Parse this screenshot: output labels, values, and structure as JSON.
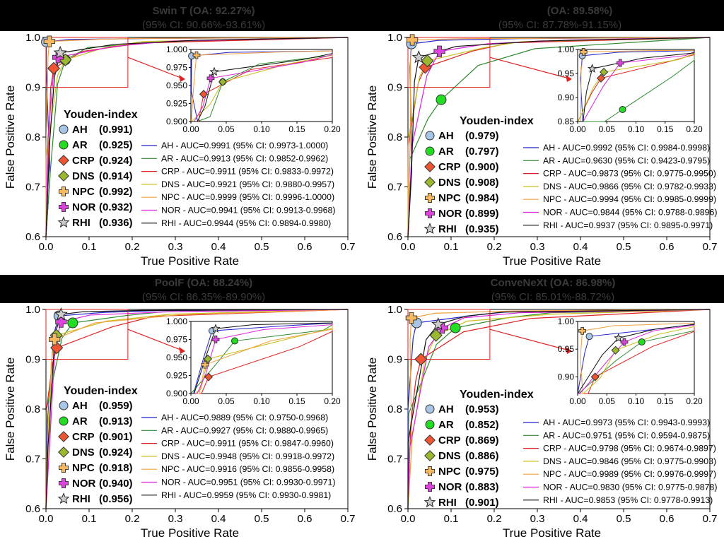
{
  "panels": [
    {
      "title": "Swin T (OA: 92.27%)",
      "ci": "(95% CI: 90.66%-93.61%)",
      "youden_title": "Youden-index",
      "xlabel": "True Positive Rate",
      "ylabel": "False Positive Rate",
      "xlim": [
        0,
        0.7
      ],
      "ylim": [
        0.6,
        1.0
      ],
      "inset_xlim": [
        0,
        0.2
      ],
      "inset_ylim": [
        0.9,
        1.0
      ],
      "inset_yticks": [
        "0.900",
        "0.925",
        "0.950",
        "0.975",
        "1.000"
      ],
      "series": [
        {
          "name": "AH",
          "youden": "(0.991)",
          "legend": "AH - AUC=0.9991 (95% CI: 0.9973-1.0000)",
          "color": "#2222cc",
          "marker": "circle",
          "mcolor": "#a8c4e6",
          "pt": [
            0.001,
            0.991
          ]
        },
        {
          "name": "AR",
          "youden": "(0.925)",
          "legend": "AR - AUC=0.9913 (95% CI: 0.9852-0.9962)",
          "color": "#2e8b2e",
          "marker": "circle",
          "mcolor": "#22dd22",
          "pt": [
            0.045,
            0.955
          ]
        },
        {
          "name": "CRP",
          "youden": "(0.924)",
          "legend": "CRP - AUC=0.9911 (95% CI: 0.9833-0.9972)",
          "color": "#dd2222",
          "marker": "diamond",
          "mcolor": "#ee5533",
          "pt": [
            0.018,
            0.938
          ]
        },
        {
          "name": "DNS",
          "youden": "(0.914)",
          "legend": "DNS - AUC=0.9921 (95% CI: 0.9880-0.9957)",
          "color": "#c8c020",
          "marker": "diamond",
          "mcolor": "#9ab830",
          "pt": [
            0.045,
            0.955
          ]
        },
        {
          "name": "NPC",
          "youden": "(0.992)",
          "legend": "NPC - AUC=0.9999 (95% CI: 0.9996-1.0000)",
          "color": "#f0a040",
          "marker": "plus",
          "mcolor": "#f6b860",
          "pt": [
            0.008,
            0.992
          ]
        },
        {
          "name": "NOR",
          "youden": "(0.932)",
          "legend": "NOR - AUC=0.9941 (95% CI: 0.9913-0.9968)",
          "color": "#dd22dd",
          "marker": "plus",
          "mcolor": "#dd44dd",
          "pt": [
            0.028,
            0.96
          ]
        },
        {
          "name": "RHI",
          "youden": "(0.936)",
          "legend": "RHI - AUC=0.9944 (95% CI: 0.9894-0.9980)",
          "color": "#111111",
          "marker": "star",
          "mcolor": "#cccccc",
          "pt": [
            0.033,
            0.969
          ]
        }
      ]
    },
    {
      "title": "(OA: 89.58%)",
      "ci": "(95% CI: 87.78%-91.15%)",
      "youden_title": "Youden-index",
      "xlabel": "True Positive Rate",
      "ylabel": "False Positive Rate",
      "xlim": [
        0,
        0.7
      ],
      "ylim": [
        0.6,
        1.0
      ],
      "inset_xlim": [
        0,
        0.2
      ],
      "inset_ylim": [
        0.85,
        1.0
      ],
      "inset_yticks": [
        "0.85",
        "0.90",
        "0.95",
        "1.00"
      ],
      "series": [
        {
          "name": "AH",
          "youden": "(0.979)",
          "legend": "AH - AUC=0.9992 (95% CI: 0.9984-0.9998)",
          "color": "#2222cc",
          "marker": "circle",
          "mcolor": "#a8c4e6",
          "pt": [
            0.008,
            0.987
          ]
        },
        {
          "name": "AR",
          "youden": "(0.797)",
          "legend": "AR - AUC=0.9630 (95% CI: 0.9423-0.9795)",
          "color": "#2e8b2e",
          "marker": "circle",
          "mcolor": "#22dd22",
          "pt": [
            0.077,
            0.875
          ]
        },
        {
          "name": "CRP",
          "youden": "(0.900)",
          "legend": "CRP - AUC=0.9873 (95% CI: 0.9775-0.9950)",
          "color": "#dd2222",
          "marker": "diamond",
          "mcolor": "#ee5533",
          "pt": [
            0.04,
            0.94
          ]
        },
        {
          "name": "DNS",
          "youden": "(0.908)",
          "legend": "DNS - AUC=0.9866 (95% CI: 0.9782-0.9933)",
          "color": "#c8c020",
          "marker": "diamond",
          "mcolor": "#9ab830",
          "pt": [
            0.045,
            0.953
          ]
        },
        {
          "name": "NPC",
          "youden": "(0.984)",
          "legend": "NPC - AUC=0.9994 (95% CI: 0.9985-0.9999)",
          "color": "#f0a040",
          "marker": "plus",
          "mcolor": "#f6b860",
          "pt": [
            0.01,
            0.995
          ]
        },
        {
          "name": "NOR",
          "youden": "(0.899)",
          "legend": "NOR - AUC=0.9844 (95% CI: 0.9788-0.9896)",
          "color": "#dd22dd",
          "marker": "plus",
          "mcolor": "#dd44dd",
          "pt": [
            0.073,
            0.972
          ]
        },
        {
          "name": "RHI",
          "youden": "(0.935)",
          "legend": "RHI - AUC=0.9937 (95% CI: 0.9895-0.9971)",
          "color": "#111111",
          "marker": "star",
          "mcolor": "#cccccc",
          "pt": [
            0.025,
            0.96
          ]
        }
      ]
    },
    {
      "title": "PoolF (OA: 88.24%)",
      "ci": "(95% CI: 86.35%-89.90%)",
      "youden_title": "Youden-index",
      "xlabel": "True Positive Rate",
      "ylabel": "False Positive Rate",
      "xlim": [
        0,
        0.7
      ],
      "ylim": [
        0.6,
        1.0
      ],
      "inset_xlim": [
        0,
        0.2
      ],
      "inset_ylim": [
        0.9,
        1.0
      ],
      "inset_yticks": [
        "0.900",
        "0.925",
        "0.950",
        "0.975",
        "1.000"
      ],
      "series": [
        {
          "name": "AH",
          "youden": "(0.959)",
          "legend": "AH - AUC=0.9889 (95% CI: 0.9750-0.9968)",
          "color": "#2222cc",
          "marker": "circle",
          "mcolor": "#a8c4e6",
          "pt": [
            0.03,
            0.987
          ]
        },
        {
          "name": "AR",
          "youden": "(0.913)",
          "legend": "AR - AUC=0.9927 (95% CI: 0.9880-0.9965)",
          "color": "#2e8b2e",
          "marker": "circle",
          "mcolor": "#22dd22",
          "pt": [
            0.062,
            0.973
          ]
        },
        {
          "name": "CRP",
          "youden": "(0.901)",
          "legend": "CRP - AUC=0.9911 (95% CI: 0.9847-0.9960)",
          "color": "#dd2222",
          "marker": "diamond",
          "mcolor": "#ee5533",
          "pt": [
            0.025,
            0.923
          ]
        },
        {
          "name": "DNS",
          "youden": "(0.924)",
          "legend": "DNS - AUC=0.9948 (95% CI: 0.9918-0.9972)",
          "color": "#c8c020",
          "marker": "diamond",
          "mcolor": "#9ab830",
          "pt": [
            0.024,
            0.948
          ]
        },
        {
          "name": "NPC",
          "youden": "(0.918)",
          "legend": "NPC - AUC=0.9916 (95% CI: 0.9856-0.9958)",
          "color": "#f0a040",
          "marker": "plus",
          "mcolor": "#f6b860",
          "pt": [
            0.02,
            0.94
          ]
        },
        {
          "name": "NOR",
          "youden": "(0.940)",
          "legend": "NOR - AUC=0.9951 (95% CI: 0.9930-0.9971)",
          "color": "#dd22dd",
          "marker": "plus",
          "mcolor": "#dd44dd",
          "pt": [
            0.035,
            0.975
          ]
        },
        {
          "name": "RHI",
          "youden": "(0.956)",
          "legend": "RHI - AUC=0.9959 (95% CI: 0.9930-0.9981)",
          "color": "#111111",
          "marker": "star",
          "mcolor": "#cccccc",
          "pt": [
            0.035,
            0.99
          ]
        }
      ]
    },
    {
      "title": "ConveNeXt (OA: 86.98%)",
      "ci": "(95% CI: 85.01%-88.72%)",
      "youden_title": "Youden-index",
      "xlabel": "True Positive Rate",
      "ylabel": "False Positive Rate",
      "xlim": [
        0,
        0.7
      ],
      "ylim": [
        0.6,
        1.0
      ],
      "inset_xlim": [
        0,
        0.2
      ],
      "inset_ylim": [
        0.87,
        1.0
      ],
      "inset_yticks": [
        "0.90",
        "0.95",
        "1.00"
      ],
      "series": [
        {
          "name": "AH",
          "youden": "(0.953)",
          "legend": "AH - AUC=0.9973 (95% CI: 0.9943-0.9993)",
          "color": "#2222cc",
          "marker": "circle",
          "mcolor": "#a8c4e6",
          "pt": [
            0.02,
            0.973
          ]
        },
        {
          "name": "AR",
          "youden": "(0.852)",
          "legend": "AR - AUC=0.9751 (95% CI: 0.9594-0.9875)",
          "color": "#2e8b2e",
          "marker": "circle",
          "mcolor": "#22dd22",
          "pt": [
            0.11,
            0.963
          ]
        },
        {
          "name": "CRP",
          "youden": "(0.869)",
          "legend": "CRP - AUC=0.9798 (95% CI: 0.9674-0.9897)",
          "color": "#dd2222",
          "marker": "diamond",
          "mcolor": "#ee5533",
          "pt": [
            0.03,
            0.9
          ]
        },
        {
          "name": "DNS",
          "youden": "(0.886)",
          "legend": "DNS - AUC=0.9846 (95% CI: 0.9775-0.9903)",
          "color": "#c8c020",
          "marker": "diamond",
          "mcolor": "#9ab830",
          "pt": [
            0.065,
            0.948
          ]
        },
        {
          "name": "NPC",
          "youden": "(0.975)",
          "legend": "NPC - AUC=0.9989 (95% CI: 0.9976-0.9997)",
          "color": "#f0a040",
          "marker": "plus",
          "mcolor": "#f6b860",
          "pt": [
            0.008,
            0.983
          ]
        },
        {
          "name": "NOR",
          "youden": "(0.883)",
          "legend": "NOR - AUC=0.9830 (95% CI: 0.9775-0.9878)",
          "color": "#dd22dd",
          "marker": "plus",
          "mcolor": "#dd44dd",
          "pt": [
            0.08,
            0.963
          ]
        },
        {
          "name": "RHI",
          "youden": "(0.901)",
          "legend": "RHI - AUC=0.9853 (95% CI: 0.9778-0.9913)",
          "color": "#111111",
          "marker": "star",
          "mcolor": "#cccccc",
          "pt": [
            0.07,
            0.97
          ]
        }
      ]
    }
  ],
  "chart_data": [
    {
      "type": "line",
      "title": "Swin T (OA: 92.27%)",
      "xlabel": "True Positive Rate",
      "ylabel": "False Positive Rate",
      "xlim": [
        0,
        0.7
      ],
      "ylim": [
        0.6,
        1.0
      ]
    },
    {
      "type": "line",
      "title": "(OA: 89.58%)",
      "xlabel": "True Positive Rate",
      "ylabel": "False Positive Rate",
      "xlim": [
        0,
        0.7
      ],
      "ylim": [
        0.6,
        1.0
      ]
    },
    {
      "type": "line",
      "title": "PoolF (OA: 88.24%)",
      "xlabel": "True Positive Rate",
      "ylabel": "False Positive Rate",
      "xlim": [
        0,
        0.7
      ],
      "ylim": [
        0.6,
        1.0
      ]
    },
    {
      "type": "line",
      "title": "ConveNeXt (OA: 86.98%)",
      "xlabel": "True Positive Rate",
      "ylabel": "False Positive Rate",
      "xlim": [
        0,
        0.7
      ],
      "ylim": [
        0.6,
        1.0
      ]
    }
  ]
}
